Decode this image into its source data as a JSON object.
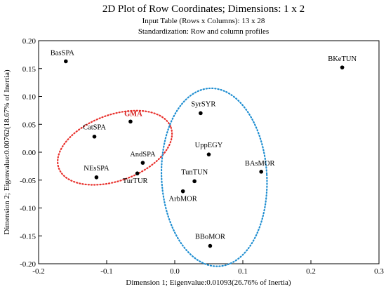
{
  "chart_data": {
    "type": "scatter",
    "title": "2D Plot of Row Coordinates; Dimensions:  1 x  2",
    "subtitles": [
      "Input Table (Rows x Columns): 13 x 28",
      "Standardization: Row and column profiles"
    ],
    "xlabel": "Dimension 1; Eigenvalue:0.01093(26.76% of Inertia)",
    "ylabel": "Dimension 2; Eigenvalue:0.00762(18.67% of Inertia)",
    "xlim": [
      -0.2,
      0.3
    ],
    "ylim": [
      -0.2,
      0.2
    ],
    "xticks": [
      "-0.2",
      "-0.1",
      "0.0",
      "0.1",
      "0.2",
      "0.3"
    ],
    "yticks": [
      "0.20",
      "0.15",
      "0.10",
      "0.05",
      "0.00",
      "-0.05",
      "-0.10",
      "-0.15",
      "-0.20"
    ],
    "grid": false,
    "points": [
      {
        "label": "BasSPA",
        "x": -0.16,
        "y": 0.163
      },
      {
        "label": "BKeTUN",
        "x": 0.246,
        "y": 0.152
      },
      {
        "label": "GMA",
        "x": -0.065,
        "y": 0.055,
        "highlight": true
      },
      {
        "label": "CatSPA",
        "x": -0.118,
        "y": 0.028
      },
      {
        "label": "SyrSYR",
        "x": 0.038,
        "y": 0.07
      },
      {
        "label": "UppEGY",
        "x": 0.05,
        "y": -0.004
      },
      {
        "label": "AndSPA",
        "x": -0.047,
        "y": -0.019
      },
      {
        "label": "NEsSPA",
        "x": -0.115,
        "y": -0.045
      },
      {
        "label": "TurTUR",
        "x": -0.055,
        "y": -0.038
      },
      {
        "label": "BAsMOR",
        "x": 0.127,
        "y": -0.035
      },
      {
        "label": "TunTUN",
        "x": 0.029,
        "y": -0.052
      },
      {
        "label": "ArbMOR",
        "x": 0.012,
        "y": -0.07
      },
      {
        "label": "BBoMOR",
        "x": 0.052,
        "y": -0.168
      }
    ],
    "colors": {
      "red_cluster": "#e8302c",
      "blue_cluster": "#1f8ed1",
      "highlight_text": "#d42020"
    }
  }
}
